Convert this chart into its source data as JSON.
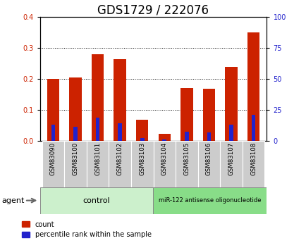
{
  "title": "GDS1729 / 222076",
  "samples": [
    "GSM83090",
    "GSM83100",
    "GSM83101",
    "GSM83102",
    "GSM83103",
    "GSM83104",
    "GSM83105",
    "GSM83106",
    "GSM83107",
    "GSM83108"
  ],
  "count_values": [
    0.2,
    0.205,
    0.28,
    0.265,
    0.068,
    0.022,
    0.17,
    0.168,
    0.24,
    0.35
  ],
  "percentile_right": [
    13.0,
    11.25,
    18.75,
    14.5,
    2.5,
    1.0,
    7.5,
    7.0,
    13.0,
    21.25
  ],
  "control_label": "control",
  "treatment_label": "miR-122 antisense oligonucleotide",
  "agent_label": "agent",
  "count_color": "#cc2200",
  "percentile_color": "#2222cc",
  "control_bg": "#ccf0cc",
  "treatment_bg": "#88dd88",
  "sample_bg": "#cccccc",
  "ylim_left": [
    0,
    0.4
  ],
  "ylim_right": [
    0,
    100
  ],
  "yticks_left": [
    0,
    0.1,
    0.2,
    0.3,
    0.4
  ],
  "yticks_right": [
    0,
    25,
    50,
    75,
    100
  ],
  "legend_count": "count",
  "legend_percentile": "percentile rank within the sample",
  "title_fontsize": 12,
  "tick_fontsize": 7,
  "label_fontsize": 8,
  "bar_width": 0.55,
  "pct_bar_width": 0.18
}
